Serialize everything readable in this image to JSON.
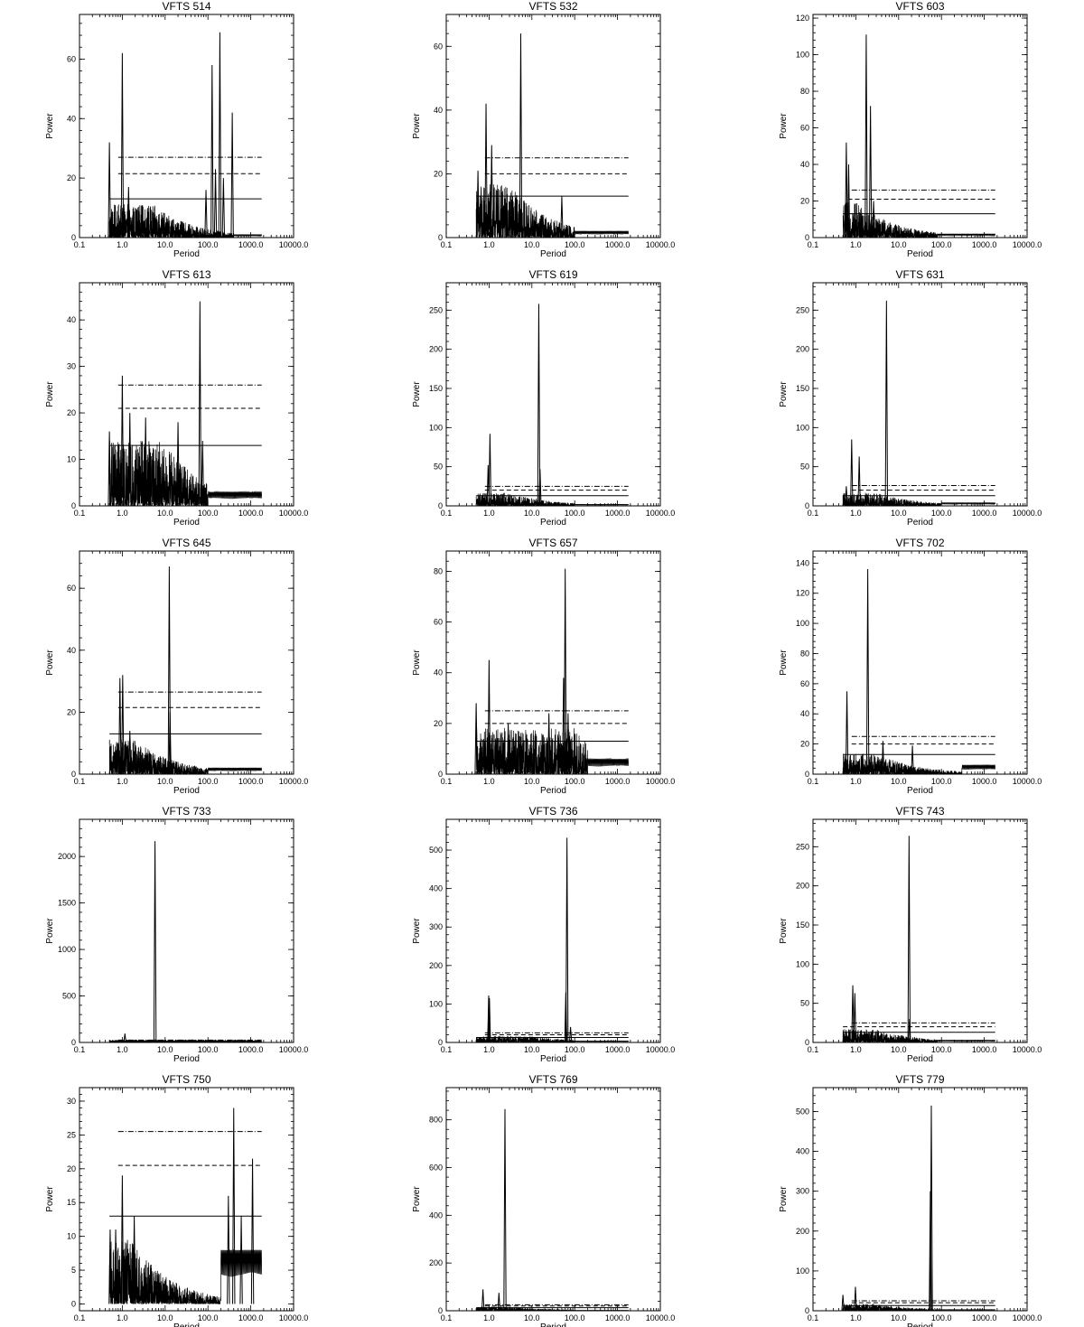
{
  "chart_data": [
    {
      "type": "line",
      "title": "VFTS 514",
      "xlabel": "Period",
      "ylabel": "Power",
      "xscale": "log",
      "xlim": [
        0.1,
        10000
      ],
      "ylim": [
        0,
        75
      ],
      "x_ticks": [
        "0.1",
        "1.0",
        "10.0",
        "100.0",
        "1000.0",
        "10000.0"
      ],
      "y_ticks": [
        0,
        20,
        40,
        60
      ],
      "significance_levels": {
        "solid": 13,
        "dashed": 21.5,
        "dash_dot": 27
      },
      "level_x_start": {
        "solid": 0.5,
        "dashed": 0.8,
        "dash_dot": 0.8
      },
      "baseline": {
        "max": 8,
        "decay_from": 5,
        "tail_from": 400,
        "tail": 1
      },
      "peaks": [
        {
          "period": 0.5,
          "power": 32
        },
        {
          "period": 1.0,
          "power": 62
        },
        {
          "period": 1.4,
          "power": 17
        },
        {
          "period": 90,
          "power": 16
        },
        {
          "period": 125,
          "power": 58
        },
        {
          "period": 150,
          "power": 23
        },
        {
          "period": 190,
          "power": 69
        },
        {
          "period": 230,
          "power": 20
        },
        {
          "period": 370,
          "power": 42
        }
      ]
    },
    {
      "type": "line",
      "title": "VFTS 532",
      "xlabel": "Period",
      "ylabel": "Power",
      "xscale": "log",
      "xlim": [
        0.1,
        10000
      ],
      "ylim": [
        0,
        70
      ],
      "x_ticks": [
        "0.1",
        "1.0",
        "10.0",
        "100.0",
        "1000.0",
        "10000.0"
      ],
      "y_ticks": [
        0,
        20,
        40,
        60
      ],
      "significance_levels": {
        "solid": 13,
        "dashed": 20,
        "dash_dot": 25
      },
      "level_x_start": {
        "solid": 0.5,
        "dashed": 0.8,
        "dash_dot": 0.8
      },
      "baseline": {
        "max": 12,
        "decay_from": 3,
        "tail_from": 100,
        "tail": 2
      },
      "peaks": [
        {
          "period": 0.55,
          "power": 21
        },
        {
          "period": 0.85,
          "power": 42
        },
        {
          "period": 1.15,
          "power": 29
        },
        {
          "period": 5.5,
          "power": 64
        },
        {
          "period": 50,
          "power": 13
        }
      ]
    },
    {
      "type": "line",
      "title": "VFTS 603",
      "xlabel": "Period",
      "ylabel": "Power",
      "xscale": "log",
      "xlim": [
        0.1,
        10000
      ],
      "ylim": [
        0,
        122
      ],
      "x_ticks": [
        "0.1",
        "1.0",
        "10.0",
        "100.0",
        "1000.0",
        "10000.0"
      ],
      "y_ticks": [
        0,
        20,
        40,
        60,
        80,
        100,
        120
      ],
      "significance_levels": {
        "solid": 13,
        "dashed": 21,
        "dash_dot": 26
      },
      "level_x_start": {
        "solid": 0.5,
        "dashed": 0.65,
        "dash_dot": 0.8
      },
      "baseline": {
        "max": 14,
        "decay_from": 1,
        "tail_from": 80,
        "tail": 2
      },
      "peaks": [
        {
          "period": 0.6,
          "power": 52
        },
        {
          "period": 0.68,
          "power": 40
        },
        {
          "period": 1.75,
          "power": 111
        },
        {
          "period": 2.2,
          "power": 72
        },
        {
          "period": 2.6,
          "power": 20
        }
      ]
    },
    {
      "type": "line",
      "title": "VFTS 613",
      "xlabel": "Period",
      "ylabel": "Power",
      "xscale": "log",
      "xlim": [
        0.1,
        10000
      ],
      "ylim": [
        0,
        48
      ],
      "x_ticks": [
        "0.1",
        "1.0",
        "10.0",
        "100.0",
        "1000.0",
        "10000.0"
      ],
      "y_ticks": [
        0,
        10,
        20,
        30,
        40
      ],
      "significance_levels": {
        "solid": 13,
        "dashed": 21,
        "dash_dot": 26
      },
      "level_x_start": {
        "solid": 0.5,
        "dashed": 0.8,
        "dash_dot": 0.8
      },
      "baseline": {
        "max": 10,
        "decay_from": 10,
        "tail_from": 100,
        "tail": 3
      },
      "peaks": [
        {
          "period": 0.5,
          "power": 16
        },
        {
          "period": 1.0,
          "power": 28
        },
        {
          "period": 1.5,
          "power": 20
        },
        {
          "period": 3.5,
          "power": 19
        },
        {
          "period": 20,
          "power": 18
        },
        {
          "period": 65,
          "power": 44
        },
        {
          "period": 75,
          "power": 14
        }
      ]
    },
    {
      "type": "line",
      "title": "VFTS 619",
      "xlabel": "Period",
      "ylabel": "Power",
      "xscale": "log",
      "xlim": [
        0.1,
        10000
      ],
      "ylim": [
        0,
        285
      ],
      "x_ticks": [
        "0.1",
        "1.0",
        "10.0",
        "100.0",
        "1000.0",
        "10000.0"
      ],
      "y_ticks": [
        0,
        50,
        100,
        150,
        200,
        250
      ],
      "significance_levels": {
        "solid": 13,
        "dashed": 20,
        "dash_dot": 25
      },
      "level_x_start": {
        "solid": 0.5,
        "dashed": 0.8,
        "dash_dot": 0.8
      },
      "baseline": {
        "max": 12,
        "decay_from": 3,
        "tail_from": 100,
        "tail": 2
      },
      "peaks": [
        {
          "period": 0.95,
          "power": 52
        },
        {
          "period": 1.05,
          "power": 92
        },
        {
          "period": 14.5,
          "power": 258
        },
        {
          "period": 15.5,
          "power": 47
        }
      ]
    },
    {
      "type": "line",
      "title": "VFTS 631",
      "xlabel": "Period",
      "ylabel": "Power",
      "xscale": "log",
      "xlim": [
        0.1,
        10000
      ],
      "ylim": [
        0,
        285
      ],
      "x_ticks": [
        "0.1",
        "1.0",
        "10.0",
        "100.0",
        "1000.0",
        "10000.0"
      ],
      "y_ticks": [
        0,
        50,
        100,
        150,
        200,
        250
      ],
      "significance_levels": {
        "solid": 13,
        "dashed": 20,
        "dash_dot": 26
      },
      "level_x_start": {
        "solid": 0.5,
        "dashed": 0.8,
        "dash_dot": 0.8
      },
      "baseline": {
        "max": 12,
        "decay_from": 3,
        "tail_from": 100,
        "tail": 4
      },
      "peaks": [
        {
          "period": 0.6,
          "power": 25
        },
        {
          "period": 0.8,
          "power": 85
        },
        {
          "period": 1.2,
          "power": 63
        },
        {
          "period": 5.2,
          "power": 262
        }
      ]
    },
    {
      "type": "line",
      "title": "VFTS 645",
      "xlabel": "Period",
      "ylabel": "Power",
      "xscale": "log",
      "xlim": [
        0.1,
        10000
      ],
      "ylim": [
        0,
        72
      ],
      "x_ticks": [
        "0.1",
        "1.0",
        "10.0",
        "100.0",
        "1000.0",
        "10000.0"
      ],
      "y_ticks": [
        0,
        20,
        40,
        60
      ],
      "significance_levels": {
        "solid": 13,
        "dashed": 21.5,
        "dash_dot": 26.5
      },
      "level_x_start": {
        "solid": 0.5,
        "dashed": 0.8,
        "dash_dot": 0.8
      },
      "baseline": {
        "max": 8,
        "decay_from": 2,
        "tail_from": 100,
        "tail": 2
      },
      "peaks": [
        {
          "period": 0.88,
          "power": 31
        },
        {
          "period": 1.02,
          "power": 32
        },
        {
          "period": 1.5,
          "power": 14
        },
        {
          "period": 12.5,
          "power": 67
        },
        {
          "period": 13,
          "power": 20
        }
      ]
    },
    {
      "type": "line",
      "title": "VFTS 657",
      "xlabel": "Period",
      "ylabel": "Power",
      "xscale": "log",
      "xlim": [
        0.1,
        10000
      ],
      "ylim": [
        0,
        88
      ],
      "x_ticks": [
        "0.1",
        "1.0",
        "10.0",
        "100.0",
        "1000.0",
        "10000.0"
      ],
      "y_ticks": [
        0,
        20,
        40,
        60,
        80
      ],
      "significance_levels": {
        "solid": 13,
        "dashed": 20,
        "dash_dot": 25
      },
      "level_x_start": {
        "solid": 0.5,
        "dashed": 0.8,
        "dash_dot": 0.8
      },
      "baseline": {
        "max": 13,
        "decay_from": 100,
        "tail_from": 200,
        "tail": 6
      },
      "peaks": [
        {
          "period": 0.5,
          "power": 28
        },
        {
          "period": 1.0,
          "power": 45
        },
        {
          "period": 2.8,
          "power": 20
        },
        {
          "period": 25,
          "power": 24
        },
        {
          "period": 55,
          "power": 38
        },
        {
          "period": 60,
          "power": 81
        },
        {
          "period": 70,
          "power": 24
        },
        {
          "period": 100,
          "power": 16
        }
      ]
    },
    {
      "type": "line",
      "title": "VFTS 702",
      "xlabel": "Period",
      "ylabel": "Power",
      "xscale": "log",
      "xlim": [
        0.1,
        10000
      ],
      "ylim": [
        0,
        148
      ],
      "x_ticks": [
        "0.1",
        "1.0",
        "10.0",
        "100.0",
        "1000.0",
        "10000.0"
      ],
      "y_ticks": [
        0,
        20,
        40,
        60,
        80,
        100,
        120,
        140
      ],
      "significance_levels": {
        "solid": 13,
        "dashed": 20,
        "dash_dot": 25
      },
      "level_x_start": {
        "solid": 0.5,
        "dashed": 0.8,
        "dash_dot": 0.8
      },
      "baseline": {
        "max": 10,
        "decay_from": 3,
        "tail_from": 300,
        "tail": 6
      },
      "peaks": [
        {
          "period": 0.62,
          "power": 55
        },
        {
          "period": 1.9,
          "power": 136
        },
        {
          "period": 4.3,
          "power": 22
        },
        {
          "period": 21,
          "power": 19
        }
      ]
    },
    {
      "type": "line",
      "title": "VFTS 733",
      "xlabel": "Period",
      "ylabel": "Power",
      "xscale": "log",
      "xlim": [
        0.1,
        10000
      ],
      "ylim": [
        0,
        2400
      ],
      "x_ticks": [
        "0.1",
        "1.0",
        "10.0",
        "100.0",
        "1000.0",
        "10000.0"
      ],
      "y_ticks": [
        0,
        500,
        1000,
        1500,
        2000
      ],
      "significance_levels": {
        "solid": 13,
        "dashed": 21,
        "dash_dot": 26
      },
      "level_x_start": {
        "solid": 0.5,
        "dashed": 0.8,
        "dash_dot": 0.8
      },
      "baseline": {
        "max": 20,
        "decay_from": 100,
        "tail_from": 1000,
        "tail": 10
      },
      "peaks": [
        {
          "period": 1.15,
          "power": 95
        },
        {
          "period": 5.8,
          "power": 2165
        }
      ]
    },
    {
      "type": "line",
      "title": "VFTS 736",
      "xlabel": "Period",
      "ylabel": "Power",
      "xscale": "log",
      "xlim": [
        0.1,
        10000
      ],
      "ylim": [
        0,
        580
      ],
      "x_ticks": [
        "0.1",
        "1.0",
        "10.0",
        "100.0",
        "1000.0",
        "10000.0"
      ],
      "y_ticks": [
        0,
        100,
        200,
        300,
        400,
        500
      ],
      "significance_levels": {
        "solid": 13,
        "dashed": 20,
        "dash_dot": 25
      },
      "level_x_start": {
        "solid": 0.5,
        "dashed": 0.8,
        "dash_dot": 0.8
      },
      "baseline": {
        "max": 12,
        "decay_from": 10,
        "tail_from": 100,
        "tail": 4
      },
      "peaks": [
        {
          "period": 0.98,
          "power": 122
        },
        {
          "period": 1.02,
          "power": 115
        },
        {
          "period": 62,
          "power": 130
        },
        {
          "period": 66,
          "power": 532
        },
        {
          "period": 80,
          "power": 40
        }
      ]
    },
    {
      "type": "line",
      "title": "VFTS 743",
      "xlabel": "Period",
      "ylabel": "Power",
      "xscale": "log",
      "xlim": [
        0.1,
        10000
      ],
      "ylim": [
        0,
        285
      ],
      "x_ticks": [
        "0.1",
        "1.0",
        "10.0",
        "100.0",
        "1000.0",
        "10000.0"
      ],
      "y_ticks": [
        0,
        50,
        100,
        150,
        200,
        250
      ],
      "significance_levels": {
        "solid": 13,
        "dashed": 20,
        "dash_dot": 25
      },
      "level_x_start": {
        "solid": 0.5,
        "dashed": 0.5,
        "dash_dot": 0.8
      },
      "baseline": {
        "max": 12,
        "decay_from": 3,
        "tail_from": 80,
        "tail": 3
      },
      "peaks": [
        {
          "period": 0.85,
          "power": 73
        },
        {
          "period": 0.95,
          "power": 63
        },
        {
          "period": 17.5,
          "power": 264
        },
        {
          "period": 18,
          "power": 30
        }
      ]
    },
    {
      "type": "line",
      "title": "VFTS 750",
      "xlabel": "Period",
      "ylabel": "Power",
      "xscale": "log",
      "xlim": [
        0.1,
        10000
      ],
      "ylim": [
        -1,
        32
      ],
      "x_ticks": [
        "0.1",
        "1.0",
        "10.0",
        "100.0",
        "1000.0",
        "10000.0"
      ],
      "y_ticks": [
        0,
        5,
        10,
        15,
        20,
        25,
        30
      ],
      "significance_levels": {
        "solid": 13,
        "dashed": 20.5,
        "dash_dot": 25.5
      },
      "level_x_start": {
        "solid": 0.5,
        "dashed": 0.8,
        "dash_dot": 0.8
      },
      "baseline": {
        "max": 7,
        "decay_from": 1.5,
        "tail_from": 200,
        "tail": 8
      },
      "peaks": [
        {
          "period": 0.52,
          "power": 11
        },
        {
          "period": 0.7,
          "power": 11
        },
        {
          "period": 1.0,
          "power": 19
        },
        {
          "period": 1.9,
          "power": 13
        },
        {
          "period": 300,
          "power": 16
        },
        {
          "period": 400,
          "power": 29
        },
        {
          "period": 600,
          "power": 13
        },
        {
          "period": 1100,
          "power": 21.5
        }
      ]
    },
    {
      "type": "line",
      "title": "VFTS 769",
      "xlabel": "Period",
      "ylabel": "Power",
      "xscale": "log",
      "xlim": [
        0.1,
        10000
      ],
      "ylim": [
        0,
        935
      ],
      "x_ticks": [
        "0.1",
        "1.0",
        "10.0",
        "100.0",
        "1000.0",
        "10000.0"
      ],
      "y_ticks": [
        0,
        200,
        400,
        600,
        800
      ],
      "significance_levels": {
        "solid": 13,
        "dashed": 20,
        "dash_dot": 25
      },
      "level_x_start": {
        "solid": 0.5,
        "dashed": 0.8,
        "dash_dot": 0.8
      },
      "baseline": {
        "max": 12,
        "decay_from": 3,
        "tail_from": 100,
        "tail": 2
      },
      "peaks": [
        {
          "period": 0.72,
          "power": 90
        },
        {
          "period": 1.7,
          "power": 75
        },
        {
          "period": 2.35,
          "power": 845
        }
      ]
    },
    {
      "type": "line",
      "title": "VFTS 779",
      "xlabel": "Period",
      "ylabel": "Power",
      "xscale": "log",
      "xlim": [
        0.1,
        10000
      ],
      "ylim": [
        0,
        560
      ],
      "x_ticks": [
        "0.1",
        "1.0",
        "10.0",
        "100.0",
        "1000.0",
        "10000.0"
      ],
      "y_ticks": [
        0,
        100,
        200,
        300,
        400,
        500
      ],
      "significance_levels": {
        "solid": 13,
        "dashed": 20,
        "dash_dot": 25
      },
      "level_x_start": {
        "solid": 0.5,
        "dashed": 0.8,
        "dash_dot": 0.8
      },
      "baseline": {
        "max": 12,
        "decay_from": 3,
        "tail_from": 80,
        "tail": 3
      },
      "peaks": [
        {
          "period": 0.5,
          "power": 40
        },
        {
          "period": 0.98,
          "power": 60
        },
        {
          "period": 55,
          "power": 300
        },
        {
          "period": 58,
          "power": 515
        }
      ]
    }
  ]
}
